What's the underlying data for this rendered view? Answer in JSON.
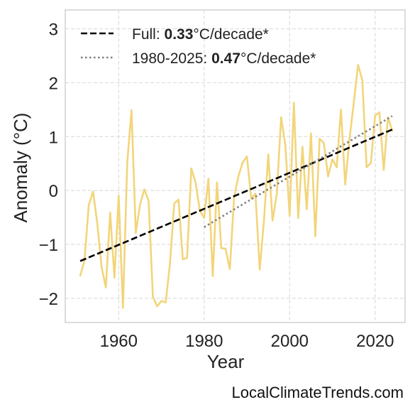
{
  "chart_data": {
    "type": "line",
    "title": "",
    "xlabel": "Year",
    "ylabel": "Anomaly (°C)",
    "xlim": [
      1947.5,
      2027
    ],
    "ylim": [
      -2.45,
      3.35
    ],
    "xticks": [
      1960,
      1980,
      2000,
      2020
    ],
    "yticks": [
      -2,
      -1,
      0,
      1,
      2,
      3
    ],
    "ytick_labels": [
      "−2",
      "−1",
      "0",
      "1",
      "2",
      "3"
    ],
    "grid": true,
    "legend_position": "top-left",
    "series": [
      {
        "kind": "annual-anomaly",
        "color": "#f2d57a",
        "x": [
          1951,
          1952,
          1953,
          1954,
          1955,
          1956,
          1957,
          1958,
          1959,
          1960,
          1961,
          1962,
          1963,
          1964,
          1965,
          1966,
          1967,
          1968,
          1969,
          1970,
          1971,
          1972,
          1973,
          1974,
          1975,
          1976,
          1977,
          1978,
          1979,
          1980,
          1981,
          1982,
          1983,
          1984,
          1985,
          1986,
          1987,
          1988,
          1989,
          1990,
          1991,
          1992,
          1993,
          1994,
          1995,
          1996,
          1997,
          1998,
          1999,
          2000,
          2001,
          2002,
          2003,
          2004,
          2005,
          2006,
          2007,
          2008,
          2009,
          2010,
          2011,
          2012,
          2013,
          2014,
          2015,
          2016,
          2017,
          2018,
          2019,
          2020,
          2021,
          2022,
          2023,
          2024
        ],
        "y": [
          -1.58,
          -1.3,
          -0.27,
          -0.02,
          -0.62,
          -1.42,
          -1.8,
          -0.41,
          -1.62,
          -0.1,
          -2.18,
          0.52,
          1.49,
          -0.79,
          -0.26,
          0.02,
          -0.19,
          -1.97,
          -2.15,
          -2.05,
          -2.08,
          -1.35,
          -0.24,
          -0.17,
          -1.28,
          -1.25,
          0.41,
          0.14,
          -0.38,
          -0.51,
          0.22,
          -1.59,
          0.15,
          -1.07,
          -1.08,
          -1.46,
          -0.12,
          0.26,
          0.52,
          0.63,
          -0.15,
          -0.06,
          -1.47,
          -0.54,
          0.67,
          -0.56,
          -0.06,
          1.36,
          0.83,
          -0.47,
          1.63,
          -0.51,
          0.81,
          -0.35,
          1.06,
          -0.85,
          0.96,
          0.88,
          0.26,
          0.58,
          0.43,
          1.5,
          0.11,
          0.96,
          1.63,
          2.33,
          2.05,
          0.43,
          0.51,
          1.39,
          1.45,
          0.38,
          1.36,
          1.11
        ]
      },
      {
        "kind": "trend-full",
        "color": "#000000",
        "style": "dashed",
        "x": [
          1951,
          2024
        ],
        "y": [
          -1.31,
          1.13
        ]
      },
      {
        "kind": "trend-1980-2025",
        "color": "#808080",
        "style": "dotted",
        "x": [
          1980,
          2024
        ],
        "y": [
          -0.68,
          1.38
        ]
      }
    ],
    "legend": [
      {
        "style": "dashed",
        "color": "#000000",
        "prefix": "Full: ",
        "value": "0.33",
        "suffix": "°C/decade*"
      },
      {
        "style": "dotted",
        "color": "#808080",
        "prefix": "1980-2025: ",
        "value": "0.47",
        "suffix": "°C/decade*"
      }
    ]
  },
  "credit": "LocalClimateTrends.com"
}
